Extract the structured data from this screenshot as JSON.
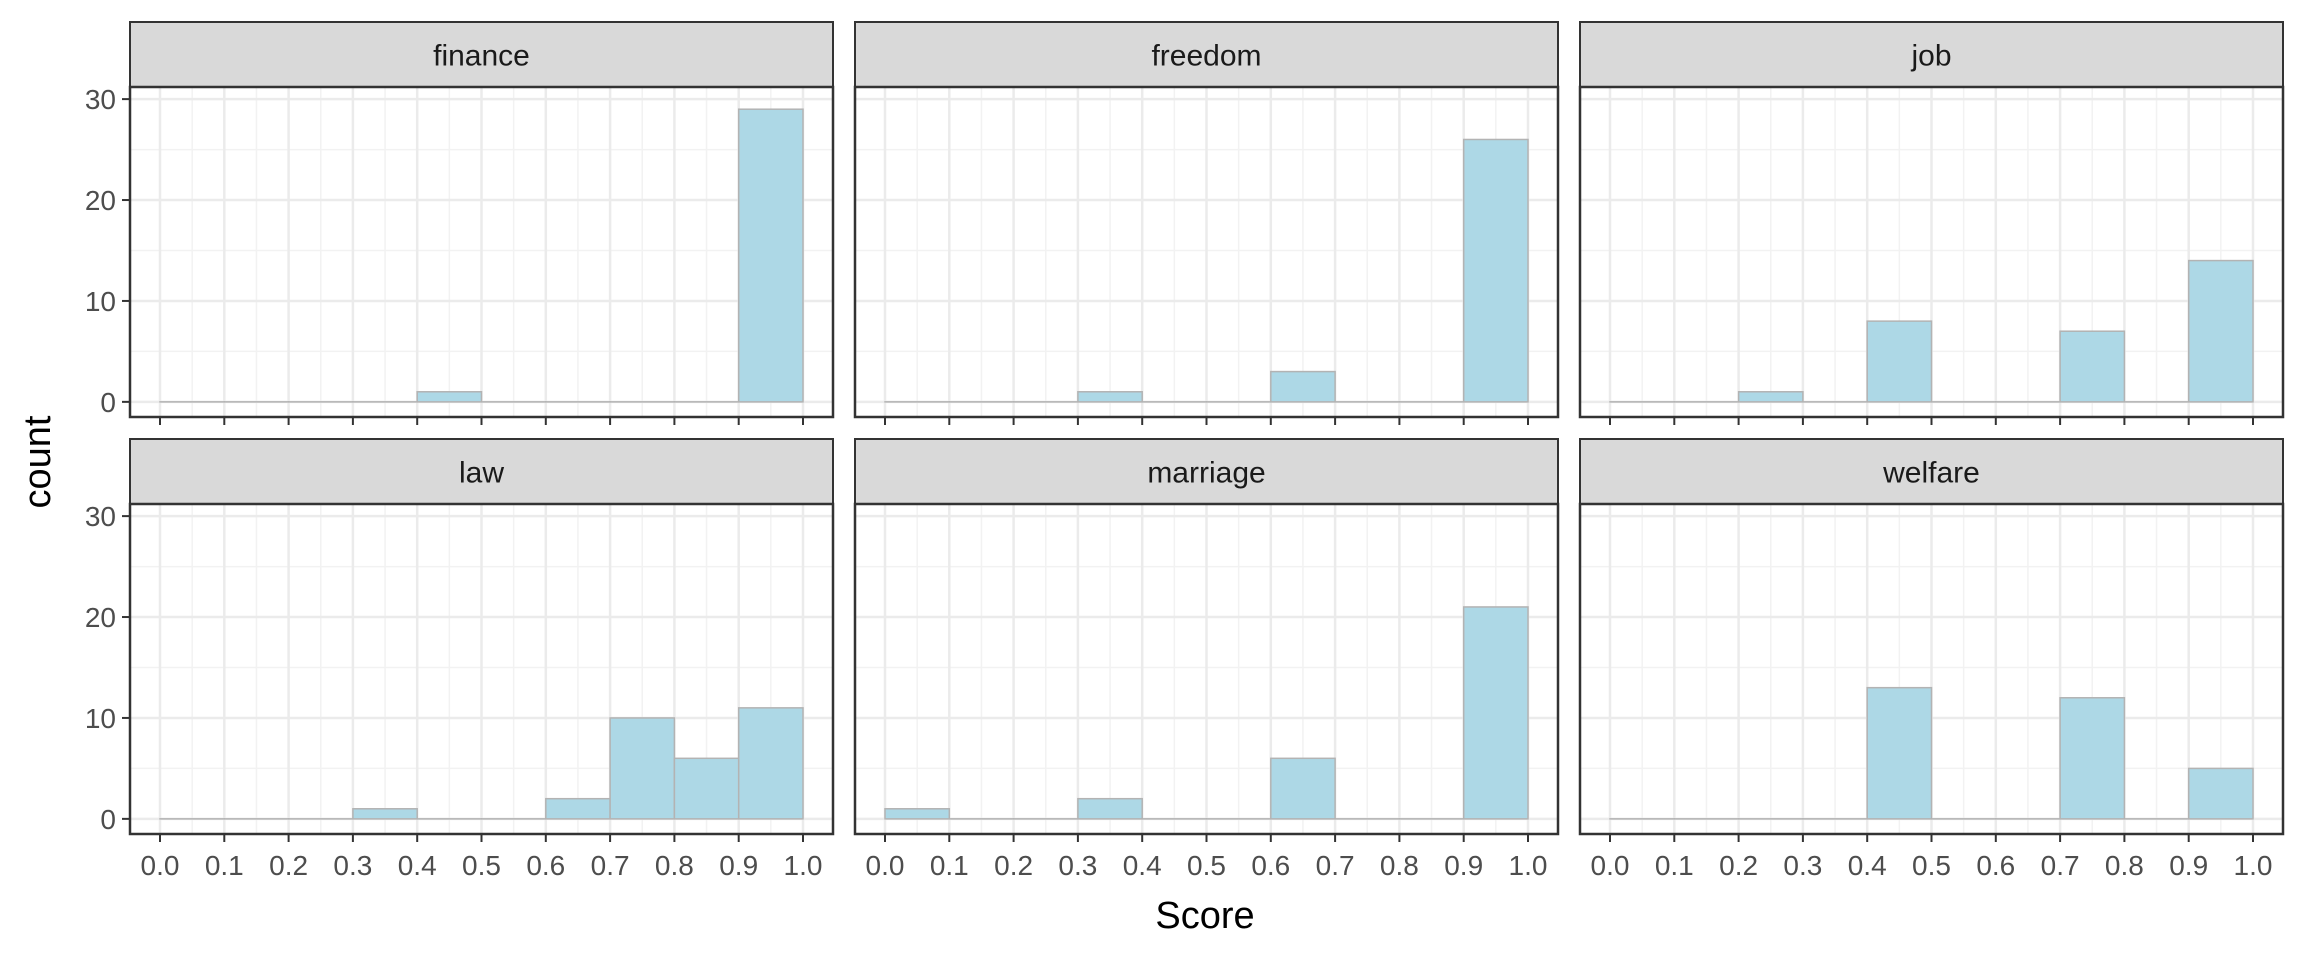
{
  "chart_data": {
    "type": "bar",
    "xlabel": "Score",
    "ylabel": "count",
    "xlim": [
      0,
      1
    ],
    "ylim": [
      0,
      30
    ],
    "x_ticks": [
      "0.0",
      "0.1",
      "0.2",
      "0.3",
      "0.4",
      "0.5",
      "0.6",
      "0.7",
      "0.8",
      "0.9",
      "1.0"
    ],
    "y_ticks": [
      "0",
      "10",
      "20",
      "30"
    ],
    "bin_width": 0.1,
    "bin_edges": [
      0.0,
      0.1,
      0.2,
      0.3,
      0.4,
      0.5,
      0.6,
      0.7,
      0.8,
      0.9,
      1.0
    ],
    "grid": true,
    "bar_fill": "#add8e6",
    "bar_outline": "#b3b3b3",
    "panels": [
      {
        "title": "finance",
        "counts": [
          0,
          0,
          0,
          0,
          1,
          0,
          0,
          0,
          0,
          29
        ]
      },
      {
        "title": "freedom",
        "counts": [
          0,
          0,
          0,
          1,
          0,
          0,
          3,
          0,
          0,
          26
        ]
      },
      {
        "title": "job",
        "counts": [
          0,
          0,
          1,
          0,
          8,
          0,
          0,
          7,
          0,
          14
        ]
      },
      {
        "title": "law",
        "counts": [
          0,
          0,
          0,
          1,
          0,
          0,
          2,
          10,
          6,
          11
        ]
      },
      {
        "title": "marriage",
        "counts": [
          1,
          0,
          0,
          2,
          0,
          0,
          6,
          0,
          0,
          21
        ]
      },
      {
        "title": "welfare",
        "counts": [
          0,
          0,
          0,
          0,
          13,
          0,
          0,
          12,
          0,
          5
        ]
      }
    ]
  }
}
